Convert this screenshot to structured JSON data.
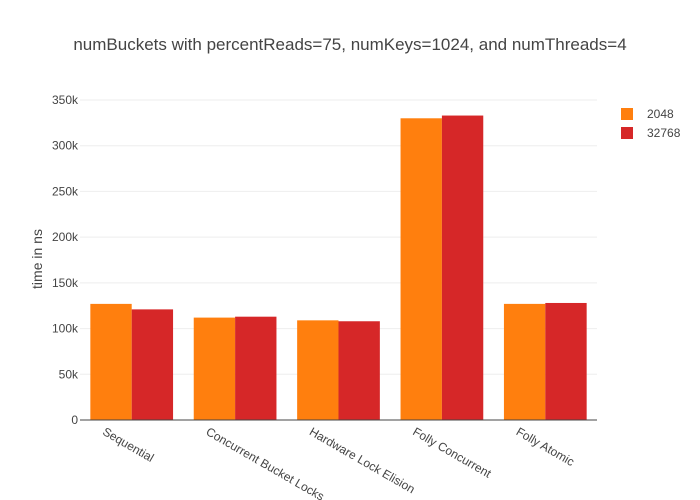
{
  "chart_data": {
    "type": "bar",
    "title": "numBuckets with percentReads=75, numKeys=1024, and numThreads=4",
    "xlabel": "",
    "ylabel": "time in ns",
    "categories": [
      "Sequential",
      "Concurrent Bucket Locks",
      "Hardware Lock Elision",
      "Folly Concurrent",
      "Folly Atomic"
    ],
    "series": [
      {
        "name": "2048",
        "color": "#ff7f0e",
        "values": [
          127000,
          112000,
          109000,
          330000,
          127000
        ]
      },
      {
        "name": "32768",
        "color": "#d62728",
        "values": [
          121000,
          113000,
          108000,
          333000,
          128000
        ]
      }
    ],
    "ylim": [
      0,
      350000
    ],
    "yticks": [
      0,
      50000,
      100000,
      150000,
      200000,
      250000,
      300000,
      350000
    ],
    "ytick_labels": [
      "0",
      "50k",
      "100k",
      "150k",
      "200k",
      "250k",
      "300k",
      "350k"
    ],
    "grid": true,
    "legend_position": "top-right"
  }
}
